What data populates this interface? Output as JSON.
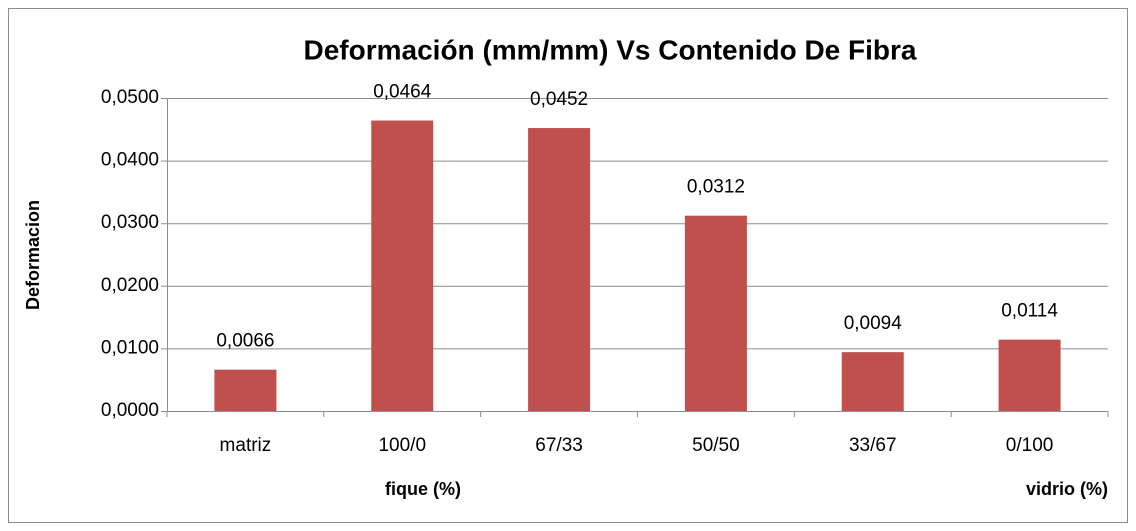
{
  "chart_data": {
    "type": "bar",
    "title": "Deformación (mm/mm) Vs Contenido De Fibra",
    "ylabel": "Deformacion",
    "xlabel": "fique (%)",
    "xlabel_right": "vidrio (%)",
    "categories": [
      "matriz",
      "100/0",
      "67/33",
      "50/50",
      "33/67",
      "0/100"
    ],
    "values": [
      0.0066,
      0.0464,
      0.0452,
      0.0312,
      0.0094,
      0.0114
    ],
    "value_labels": [
      "0,0066",
      "0,0464",
      "0,0452",
      "0,0312",
      "0,0094",
      "0,0114"
    ],
    "color": "#c0504d",
    "ylim": [
      0,
      0.05
    ],
    "yticks": [
      {
        "value": 0,
        "label": "0,0000"
      },
      {
        "value": 0.01,
        "label": "0,0100"
      },
      {
        "value": 0.02,
        "label": "0,0200"
      },
      {
        "value": 0.03,
        "label": "0,0300"
      },
      {
        "value": 0.04,
        "label": "0,0400"
      },
      {
        "value": 0.05,
        "label": "0,0500"
      }
    ],
    "grid": true
  }
}
